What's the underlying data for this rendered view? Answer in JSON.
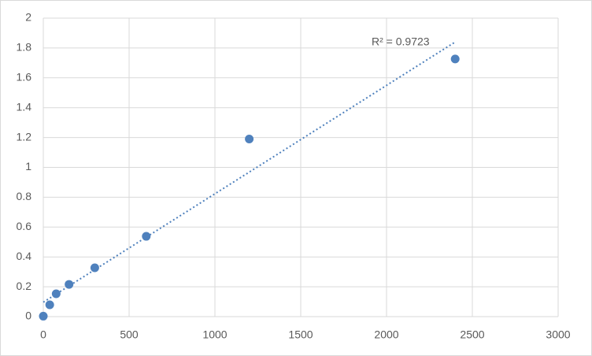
{
  "chart_data": {
    "type": "scatter",
    "annotation": "R² = 0.9723",
    "trendline": true,
    "color": "#4f81bd",
    "trendline_color": "#4f81bd",
    "x": [
      0,
      37.5,
      75,
      150,
      300,
      600,
      1200,
      2400
    ],
    "values": [
      0.003,
      0.079,
      0.153,
      0.216,
      0.327,
      0.538,
      1.19,
      1.726
    ],
    "xlim": [
      0,
      3000
    ],
    "xticks": [
      0,
      500,
      1000,
      1500,
      2000,
      2500,
      3000
    ],
    "ylim": [
      0,
      2
    ],
    "yticks": [
      0,
      0.2,
      0.4,
      0.6,
      0.8,
      1,
      1.2,
      1.4,
      1.6,
      1.8,
      2
    ],
    "grid": true
  }
}
